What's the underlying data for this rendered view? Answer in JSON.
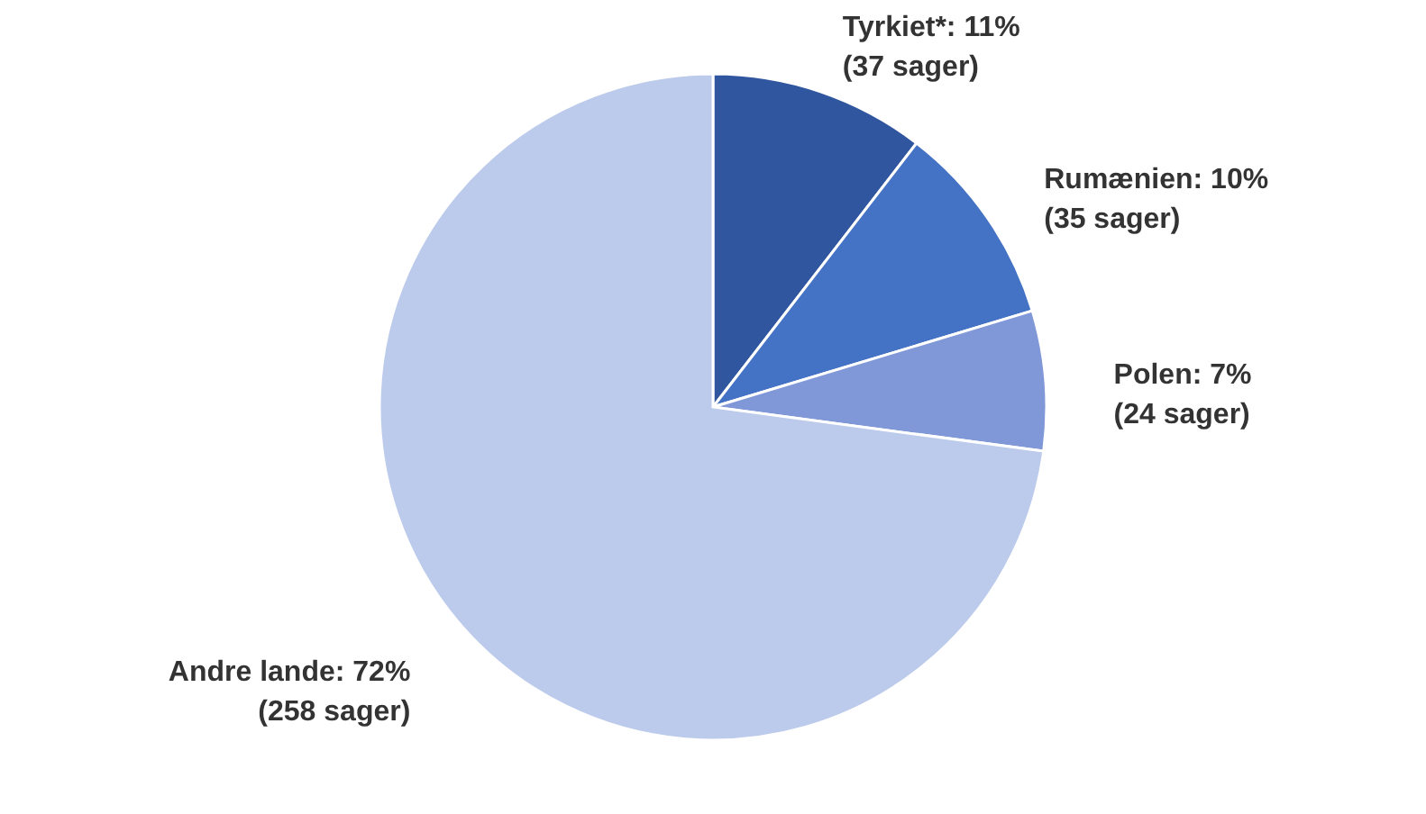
{
  "chart_data": {
    "type": "pie",
    "categories": [
      "Tyrkiet*",
      "Rumænien",
      "Polen",
      "Andre lande"
    ],
    "values": [
      37,
      35,
      24,
      258
    ],
    "value_labels": [
      "11%\n(37 sager)",
      "10%\n(35 sager)",
      "7%\n(24 sager)",
      "72%\n(258 sager)"
    ],
    "colors": [
      "#2f569e",
      "#4472c4",
      "#8098d8",
      "#bccbeb"
    ]
  }
}
